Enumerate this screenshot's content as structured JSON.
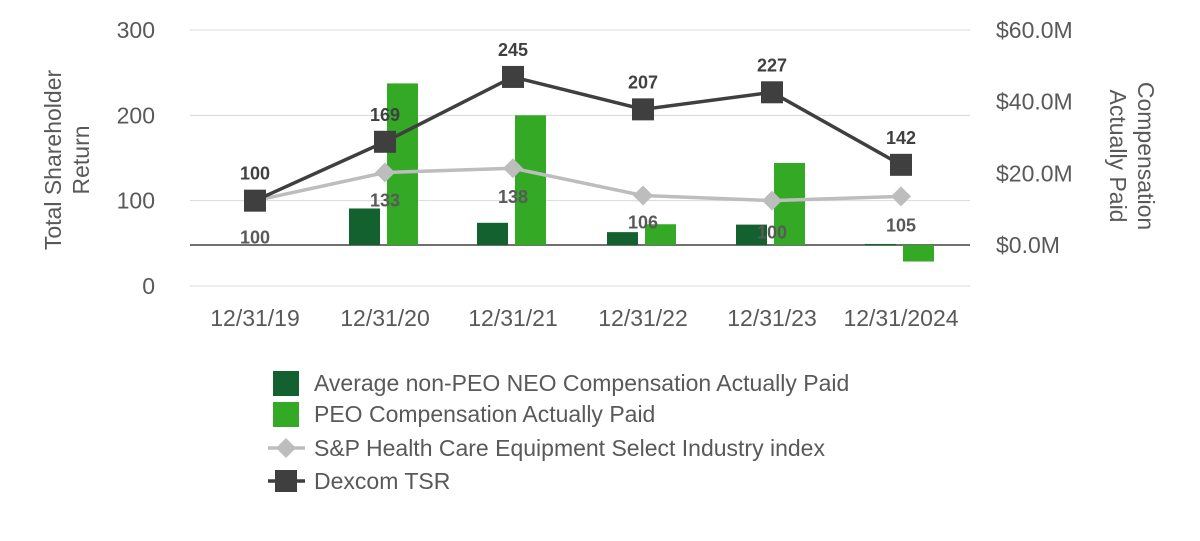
{
  "chart_data": {
    "type": "bar",
    "title": "",
    "categories": [
      "12/31/19",
      "12/31/20",
      "12/31/21",
      "12/31/22",
      "12/31/23",
      "12/31/2024"
    ],
    "left_axis": {
      "label_line1": "Total Shareholder",
      "label_line2": "Return",
      "range": [
        0,
        300
      ],
      "ticks": [
        {
          "value": 0,
          "label": "0"
        },
        {
          "value": 100,
          "label": "100"
        },
        {
          "value": 200,
          "label": "200"
        },
        {
          "value": 300,
          "label": "300"
        }
      ]
    },
    "right_axis": {
      "label_line1": "Compensation",
      "label_line2": "Actually Paid",
      "unit": "$M",
      "range": [
        -11.43,
        60
      ],
      "ticks": [
        {
          "value": 0,
          "label": "$0.0M"
        },
        {
          "value": 20,
          "label": "$20.0M"
        },
        {
          "value": 40,
          "label": "$40.0M"
        },
        {
          "value": 60,
          "label": "$60.0M"
        }
      ]
    },
    "grid": true,
    "legend_position": "bottom",
    "series": [
      {
        "name": "Average non-PEO NEO Compensation Actually Paid",
        "kind": "bar",
        "axis": "right",
        "color": "#13612f",
        "values": [
          0,
          10.2,
          6.2,
          3.6,
          5.7,
          0.3
        ]
      },
      {
        "name": "PEO Compensation Actually Paid",
        "kind": "bar",
        "axis": "right",
        "color": "#33a925",
        "values": [
          0,
          45.1,
          36.2,
          5.8,
          22.9,
          -4.6
        ]
      },
      {
        "name": "S&P Health Care Equipment Select Industry index",
        "kind": "line",
        "axis": "left",
        "color": "#bdbdbd",
        "marker": "diamond",
        "values": [
          100,
          133,
          138,
          106,
          100,
          105
        ],
        "labels": [
          "100",
          "133",
          "138",
          "106",
          "100",
          "105"
        ]
      },
      {
        "name": "Dexcom TSR",
        "kind": "line",
        "axis": "left",
        "color": "#3f3f3f",
        "marker": "square",
        "values": [
          100,
          169,
          245,
          207,
          227,
          142
        ],
        "labels": [
          "100",
          "169",
          "245",
          "207",
          "227",
          "142"
        ]
      }
    ]
  }
}
